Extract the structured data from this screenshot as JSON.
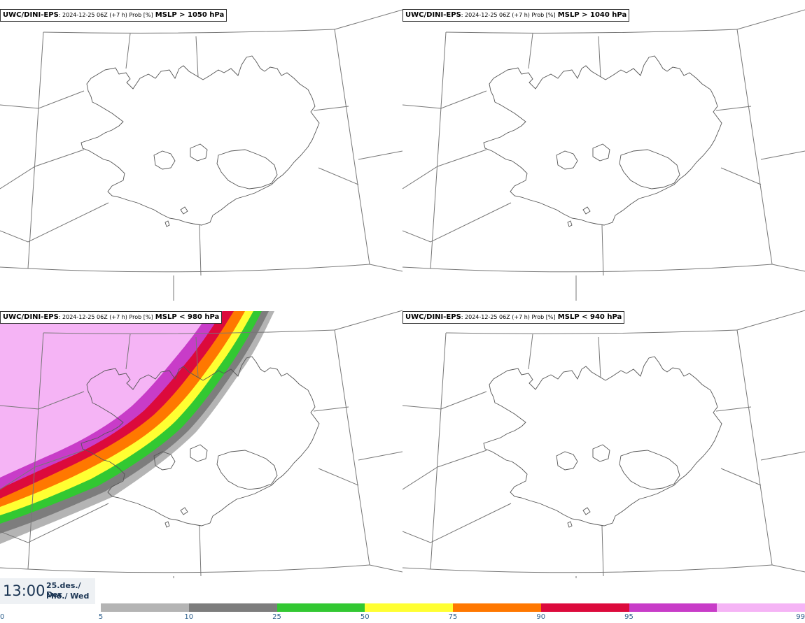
{
  "model": "UWC/DINI-EPS",
  "run_meta": "2024-12-25 06Z (+7 h) Prob [%]",
  "panels": [
    {
      "threshold": "MSLP > 1050 hPa",
      "shaded": false
    },
    {
      "threshold": "MSLP > 1040 hPa",
      "shaded": false
    },
    {
      "threshold": "MSLP < 980 hPa",
      "shaded": true
    },
    {
      "threshold": "MSLP < 940 hPa",
      "shaded": false
    }
  ],
  "valid_time": {
    "hour": "13:00",
    "date": "25.des./ Dec",
    "weekday": "Mið./ Wed"
  },
  "legend": {
    "ticks": [
      "0",
      "5",
      "10",
      "25",
      "50",
      "75",
      "90",
      "95",
      "99"
    ],
    "colors": [
      "#b4b4b4",
      "#7d7d7d",
      "#32c832",
      "#ffff32",
      "#ff7800",
      "#dc0a3c",
      "#c83cc8",
      "#f5b4f5"
    ]
  },
  "colors": {
    "coast": "#555555",
    "grid": "#777777",
    "text_dark": "#1b3553",
    "tick_text": "#2d5f8c"
  }
}
